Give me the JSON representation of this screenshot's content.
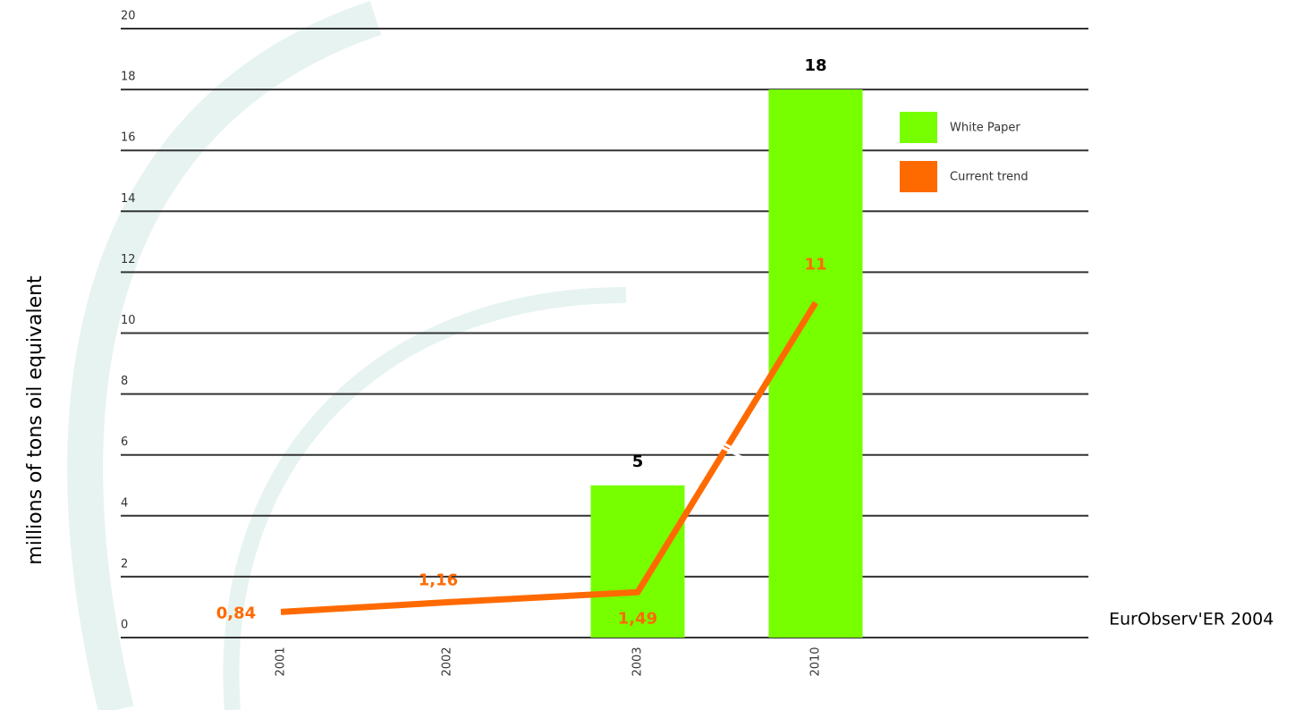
{
  "chart_data": {
    "type": "bar",
    "categories": [
      "2001",
      "2002",
      "2003",
      "2010"
    ],
    "y_label": "millions of tons oil equivalent",
    "source": "EurObserv'ER 2004",
    "ylim": [
      0,
      20
    ],
    "yticks": [
      0,
      2,
      4,
      6,
      8,
      10,
      12,
      14,
      16,
      18,
      20
    ],
    "grid": true,
    "legend": "top-right",
    "series": [
      {
        "name": "White Paper",
        "type": "bar",
        "color": "#77ff00",
        "values": [
          null,
          null,
          5,
          18
        ]
      },
      {
        "name": "Current trend",
        "type": "line",
        "color": "#ff6a00",
        "values": [
          0.84,
          1.16,
          1.49,
          11
        ],
        "value_labels": [
          "0,84",
          "1,16",
          "1,49",
          "11"
        ]
      }
    ]
  }
}
